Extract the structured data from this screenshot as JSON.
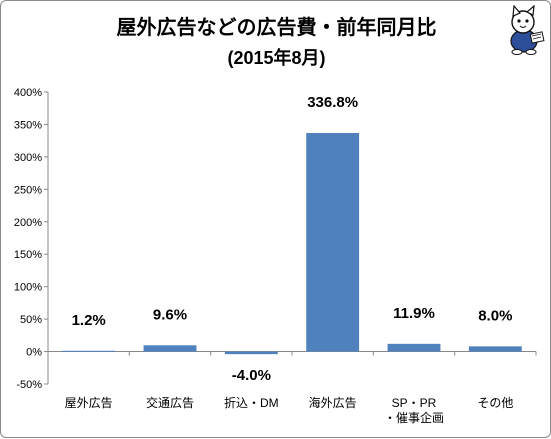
{
  "header": {
    "title": "屋外広告などの広告費・前年同月比",
    "subtitle": "(2015年8月)"
  },
  "chart_data": {
    "type": "bar",
    "title": "屋外広告などの広告費・前年同月比",
    "subtitle": "(2015年8月)",
    "categories": [
      "屋外広告",
      "交通広告",
      "折込・DM",
      "海外広告",
      "SP・PR・催事企画",
      "その他"
    ],
    "category_lines": [
      [
        "屋外広告"
      ],
      [
        "交通広告"
      ],
      [
        "折込・DM"
      ],
      [
        "海外広告"
      ],
      [
        "SP・PR",
        "・催事企画"
      ],
      [
        "その他"
      ]
    ],
    "values": [
      1.2,
      9.6,
      -4.0,
      336.8,
      11.9,
      8.0
    ],
    "data_labels": [
      "1.2%",
      "9.6%",
      "-4.0%",
      "336.8%",
      "11.9%",
      "8.0%"
    ],
    "ylim": [
      -50,
      400
    ],
    "yticks": [
      -50,
      0,
      50,
      100,
      150,
      200,
      250,
      300,
      350,
      400
    ],
    "ytick_labels": [
      "-50%",
      "0%",
      "50%",
      "100%",
      "150%",
      "200%",
      "250%",
      "300%",
      "350%",
      "400%"
    ],
    "xlabel": "",
    "ylabel": "",
    "grid": false,
    "legend": "none",
    "bar_color": "#4f81bd"
  }
}
